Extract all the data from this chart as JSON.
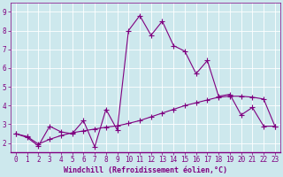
{
  "xlabel": "Windchill (Refroidissement éolien,°C)",
  "background_color": "#cde8ed",
  "line_color": "#800080",
  "grid_color": "#ffffff",
  "x_values": [
    0,
    1,
    2,
    3,
    4,
    5,
    6,
    7,
    8,
    9,
    10,
    11,
    12,
    13,
    14,
    15,
    16,
    17,
    18,
    19,
    20,
    21,
    22,
    23
  ],
  "y_curve": [
    2.5,
    2.3,
    1.85,
    2.9,
    2.6,
    2.5,
    3.2,
    1.8,
    3.8,
    2.7,
    8.0,
    8.8,
    7.75,
    8.5,
    7.2,
    6.9,
    5.7,
    6.4,
    4.5,
    4.6,
    3.5,
    3.9,
    2.9,
    2.9
  ],
  "y_line": [
    2.5,
    2.35,
    1.95,
    2.2,
    2.4,
    2.55,
    2.65,
    2.75,
    2.85,
    2.92,
    3.05,
    3.2,
    3.4,
    3.6,
    3.8,
    4.0,
    4.15,
    4.3,
    4.45,
    4.5,
    4.5,
    4.45,
    4.35,
    2.9
  ],
  "xlim_min": -0.5,
  "xlim_max": 23.5,
  "ylim_min": 1.5,
  "ylim_max": 9.5,
  "yticks": [
    2,
    3,
    4,
    5,
    6,
    7,
    8,
    9
  ],
  "xticks": [
    0,
    1,
    2,
    3,
    4,
    5,
    6,
    7,
    8,
    9,
    10,
    11,
    12,
    13,
    14,
    15,
    16,
    17,
    18,
    19,
    20,
    21,
    22,
    23
  ],
  "marker": "+",
  "markersize": 4,
  "linewidth": 0.8,
  "tick_fontsize": 5.5,
  "xlabel_fontsize": 6.0
}
